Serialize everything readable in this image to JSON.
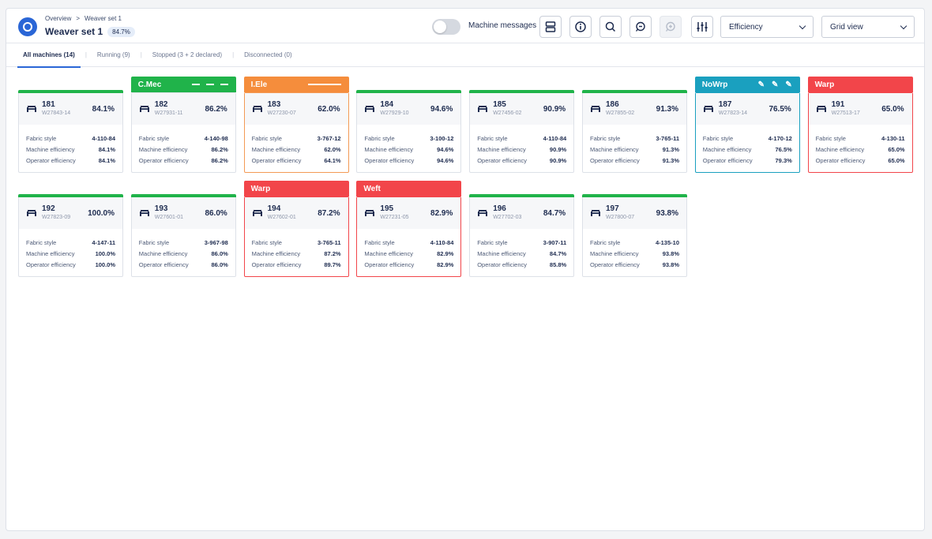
{
  "header": {
    "breadcrumb": [
      "Overview",
      "Weaver set 1"
    ],
    "breadcrumb_sep": ">",
    "title": "Weaver set 1",
    "title_badge": "84.7%",
    "machine_messages_label": "Machine messages",
    "machine_messages_on": false,
    "metric_select": "Efficiency",
    "view_select": "Grid view"
  },
  "tabs": [
    {
      "label": "All machines (14)",
      "active": true
    },
    {
      "label": "Running (9)",
      "active": false
    },
    {
      "label": "Stopped (3 + 2 declared)",
      "active": false
    },
    {
      "label": "Disconnected (0)",
      "active": false
    }
  ],
  "labels": {
    "fabric_style": "Fabric style",
    "machine_efficiency": "Machine efficiency",
    "operator_efficiency": "Operator efficiency"
  },
  "colors": {
    "running": "#20b34a",
    "alert_red": "#f2454a",
    "alert_orange": "#f58d3c",
    "alert_teal": "#1aa0bf",
    "accent": "#2a66d6"
  },
  "machines": [
    {
      "num": "181",
      "id": "W27843-14",
      "pct": "84.1%",
      "fabric": "4-110-84",
      "me": "84.1%",
      "oe": "84.1%",
      "banner": null
    },
    {
      "num": "182",
      "id": "W27931-11",
      "pct": "86.2%",
      "fabric": "4-140-98",
      "me": "86.2%",
      "oe": "86.2%",
      "banner": "C.Mec"
    },
    {
      "num": "183",
      "id": "W27230-07",
      "pct": "62.0%",
      "fabric": "3-767-12",
      "me": "62.0%",
      "oe": "64.1%",
      "banner": "I.Ele"
    },
    {
      "num": "184",
      "id": "W27929-10",
      "pct": "94.6%",
      "fabric": "3-100-12",
      "me": "94.6%",
      "oe": "94.6%",
      "banner": null
    },
    {
      "num": "185",
      "id": "W27456-02",
      "pct": "90.9%",
      "fabric": "4-110-84",
      "me": "90.9%",
      "oe": "90.9%",
      "banner": null
    },
    {
      "num": "186",
      "id": "W27855-02",
      "pct": "91.3%",
      "fabric": "3-765-11",
      "me": "91.3%",
      "oe": "91.3%",
      "banner": null
    },
    {
      "num": "187",
      "id": "W27823-14",
      "pct": "76.5%",
      "fabric": "4-170-12",
      "me": "76.5%",
      "oe": "79.3%",
      "banner": "NoWrp"
    },
    {
      "num": "191",
      "id": "W27513-17",
      "pct": "65.0%",
      "fabric": "4-130-11",
      "me": "65.0%",
      "oe": "65.0%",
      "banner": "Warp"
    },
    {
      "num": "192",
      "id": "W27823-09",
      "pct": "100.0%",
      "fabric": "4-147-11",
      "me": "100.0%",
      "oe": "100.0%",
      "banner": null
    },
    {
      "num": "193",
      "id": "W27601-01",
      "pct": "86.0%",
      "fabric": "3-967-98",
      "me": "86.0%",
      "oe": "86.0%",
      "banner": null
    },
    {
      "num": "194",
      "id": "W27602-01",
      "pct": "87.2%",
      "fabric": "3-765-11",
      "me": "87.2%",
      "oe": "89.7%",
      "banner": "Warp"
    },
    {
      "num": "195",
      "id": "W27231-05",
      "pct": "82.9%",
      "fabric": "4-110-84",
      "me": "82.9%",
      "oe": "82.9%",
      "banner": "Weft"
    },
    {
      "num": "196",
      "id": "W27702-03",
      "pct": "84.7%",
      "fabric": "3-907-11",
      "me": "84.7%",
      "oe": "85.8%",
      "banner": null
    },
    {
      "num": "197",
      "id": "W27800-07",
      "pct": "93.8%",
      "fabric": "4-135-10",
      "me": "93.8%",
      "oe": "93.8%",
      "banner": null
    }
  ]
}
